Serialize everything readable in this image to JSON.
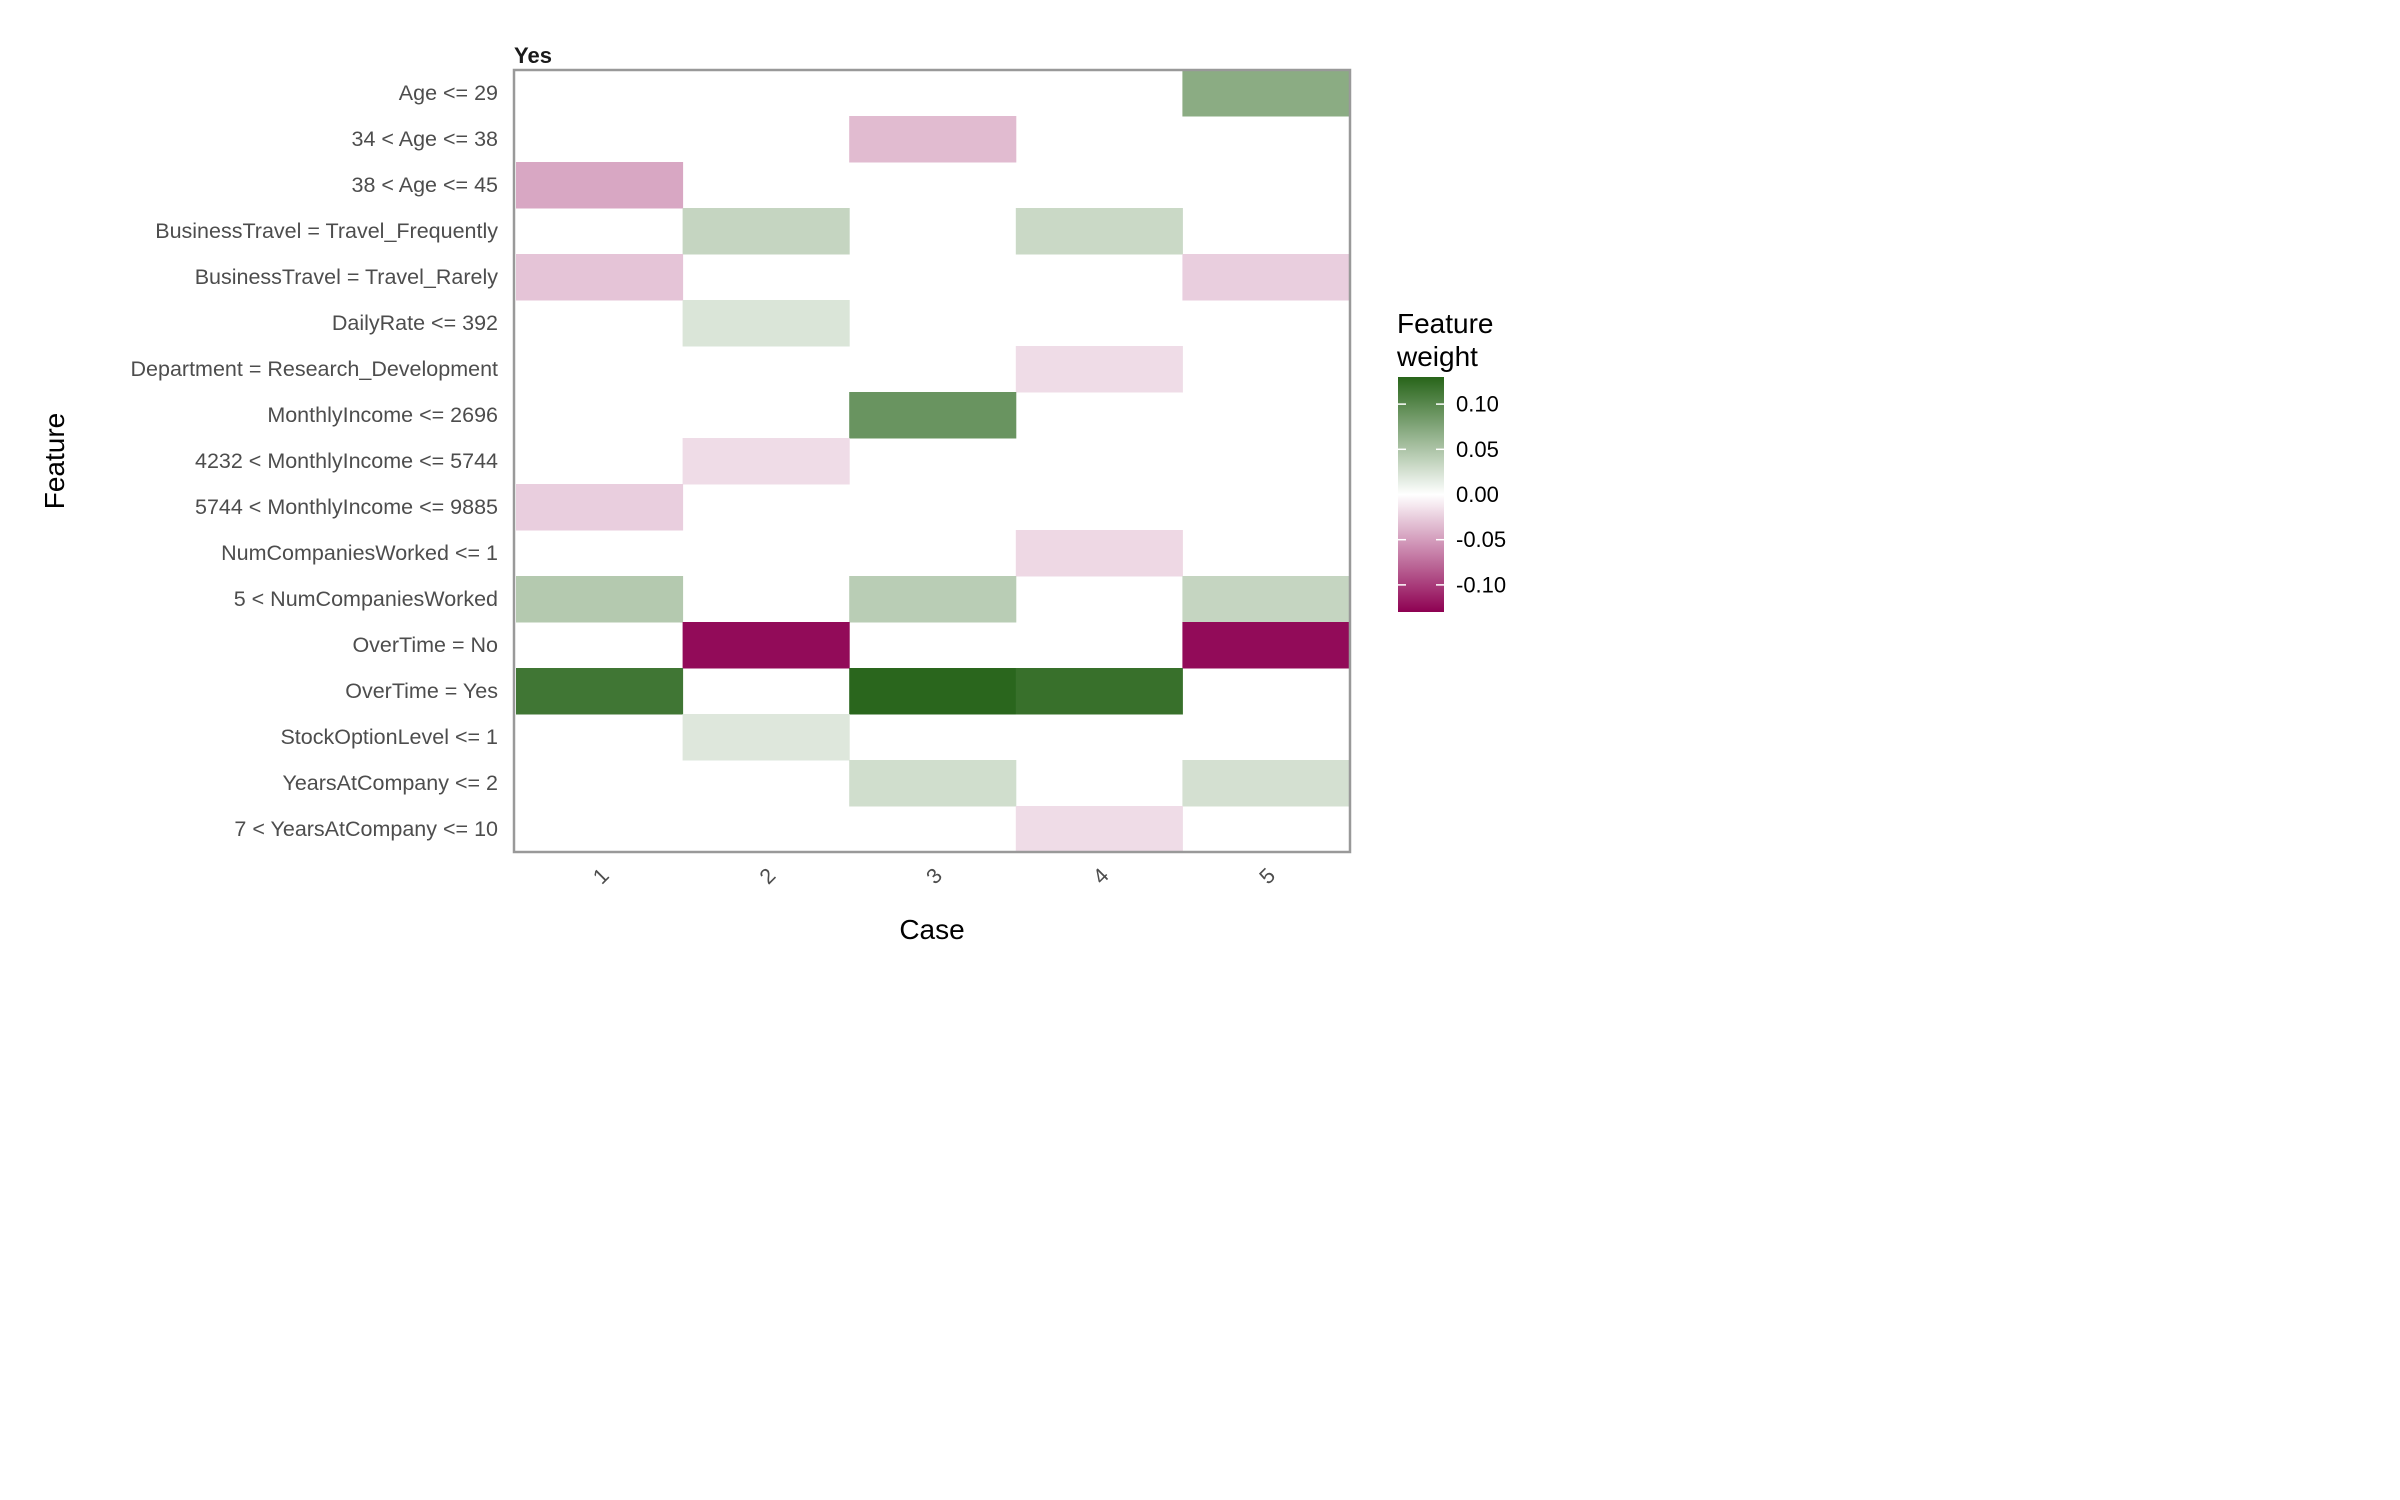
{
  "chart_data": {
    "type": "heatmap",
    "panel_title": "Yes",
    "xlabel": "Case",
    "ylabel": "Feature",
    "x_categories": [
      "1",
      "2",
      "3",
      "4",
      "5"
    ],
    "y_categories": [
      "Age <= 29",
      "34 < Age <= 38",
      "38 < Age <= 45",
      "BusinessTravel = Travel_Frequently",
      "BusinessTravel = Travel_Rarely",
      "DailyRate <= 392",
      "Department = Research_Development",
      "MonthlyIncome <= 2696",
      "4232 < MonthlyIncome <= 5744",
      "5744 < MonthlyIncome <= 9885",
      "NumCompaniesWorked <= 1",
      "5 < NumCompaniesWorked",
      "OverTime = No",
      "OverTime = Yes",
      "StockOptionLevel <= 1",
      "YearsAtCompany <= 2",
      "7 < YearsAtCompany <= 10"
    ],
    "cells": [
      {
        "feature": "Age <= 29",
        "case": "5",
        "value": 0.07
      },
      {
        "feature": "34 < Age <= 38",
        "case": "3",
        "value": -0.035
      },
      {
        "feature": "38 < Age <= 45",
        "case": "1",
        "value": -0.045
      },
      {
        "feature": "BusinessTravel = Travel_Frequently",
        "case": "2",
        "value": 0.035
      },
      {
        "feature": "BusinessTravel = Travel_Frequently",
        "case": "4",
        "value": 0.032
      },
      {
        "feature": "BusinessTravel = Travel_Rarely",
        "case": "1",
        "value": -0.03
      },
      {
        "feature": "BusinessTravel = Travel_Rarely",
        "case": "5",
        "value": -0.025
      },
      {
        "feature": "DailyRate <= 392",
        "case": "2",
        "value": 0.022
      },
      {
        "feature": "Department = Research_Development",
        "case": "4",
        "value": -0.018
      },
      {
        "feature": "MonthlyIncome <= 2696",
        "case": "3",
        "value": 0.09
      },
      {
        "feature": "4232 < MonthlyIncome <= 5744",
        "case": "2",
        "value": -0.018
      },
      {
        "feature": "5744 < MonthlyIncome <= 9885",
        "case": "1",
        "value": -0.025
      },
      {
        "feature": "NumCompaniesWorked <= 1",
        "case": "4",
        "value": -0.02
      },
      {
        "feature": "5 < NumCompaniesWorked",
        "case": "1",
        "value": 0.045
      },
      {
        "feature": "5 < NumCompaniesWorked",
        "case": "3",
        "value": 0.042
      },
      {
        "feature": "5 < NumCompaniesWorked",
        "case": "5",
        "value": 0.035
      },
      {
        "feature": "OverTime = No",
        "case": "2",
        "value": -0.125
      },
      {
        "feature": "OverTime = No",
        "case": "5",
        "value": -0.125
      },
      {
        "feature": "OverTime = Yes",
        "case": "1",
        "value": 0.115
      },
      {
        "feature": "OverTime = Yes",
        "case": "3",
        "value": 0.128
      },
      {
        "feature": "OverTime = Yes",
        "case": "4",
        "value": 0.12
      },
      {
        "feature": "StockOptionLevel <= 1",
        "case": "2",
        "value": 0.02
      },
      {
        "feature": "YearsAtCompany <= 2",
        "case": "3",
        "value": 0.028
      },
      {
        "feature": "YearsAtCompany <= 2",
        "case": "5",
        "value": 0.026
      },
      {
        "feature": "7 < YearsAtCompany <= 10",
        "case": "4",
        "value": -0.018
      }
    ],
    "legend": {
      "title_lines": [
        "Feature",
        "weight"
      ],
      "ticks": [
        0.1,
        0.05,
        0.0,
        -0.05,
        -0.1
      ],
      "tick_labels": [
        "0.10",
        "0.05",
        "0.00",
        "-0.05",
        "-0.10"
      ],
      "range": [
        -0.13,
        0.13
      ],
      "high_color": "#276419",
      "mid_color": "#ffffff",
      "low_color": "#8e0152"
    },
    "frame_color": "#999999",
    "grid": false
  }
}
